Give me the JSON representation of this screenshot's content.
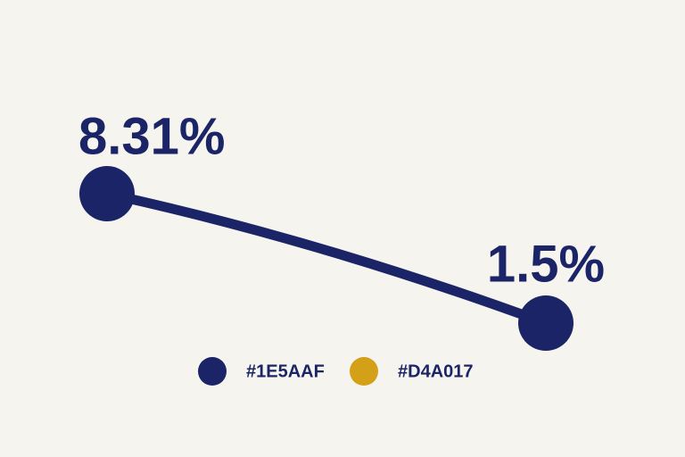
{
  "chart_data": {
    "type": "line",
    "categories": [
      null,
      null
    ],
    "series": [
      {
        "name": "#1E5AAF",
        "color": "#1b2466",
        "values": [
          8.31,
          1.5
        ],
        "value_labels": [
          "8.31%",
          "1.5%"
        ]
      },
      {
        "name": "#D4A017",
        "color": "#d4a017",
        "values": [
          null,
          null
        ]
      }
    ]
  }
}
